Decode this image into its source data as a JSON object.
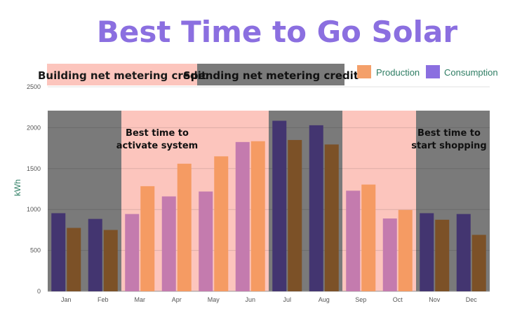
{
  "chart_data": {
    "type": "bar",
    "title": "Best Time to Go Solar",
    "xlabel": "",
    "ylabel": "kWh",
    "ylim": [
      0,
      2500
    ],
    "yticks": [
      0,
      500,
      1000,
      1500,
      2000,
      2500
    ],
    "grid": true,
    "legend_position": "top-right",
    "categories": [
      "Jan",
      "Feb",
      "Mar",
      "Apr",
      "May",
      "Jun",
      "Jul",
      "Aug",
      "Sep",
      "Oct",
      "Nov",
      "Dec"
    ],
    "series": [
      {
        "name": "Consumption",
        "values": [
          955,
          885,
          945,
          1160,
          1220,
          1825,
          2085,
          2030,
          1230,
          890,
          955,
          945
        ]
      },
      {
        "name": "Production",
        "values": [
          775,
          750,
          1285,
          1560,
          1650,
          1835,
          1850,
          1795,
          1305,
          995,
          875,
          690
        ]
      }
    ],
    "legend": [
      {
        "label": "Production",
        "color": "#F4A06A"
      },
      {
        "label": "Consumption",
        "color": "#8B6FE0"
      }
    ],
    "bands": [
      {
        "label": "",
        "from_index": 0,
        "to_index": 1,
        "phase": "spending"
      },
      {
        "label": "",
        "from_index": 2,
        "to_index": 5,
        "phase": "building"
      },
      {
        "label": "",
        "from_index": 6,
        "to_index": 7,
        "phase": "spending"
      },
      {
        "label": "",
        "from_index": 8,
        "to_index": 9,
        "phase": "building"
      },
      {
        "label": "",
        "from_index": 10,
        "to_index": 11,
        "phase": "spending"
      }
    ],
    "header_bands": [
      {
        "label": "Building net metering credit",
        "phase": "building"
      },
      {
        "label": "Spending net metering credit",
        "phase": "spending"
      }
    ],
    "annotations": [
      {
        "lines": [
          "Best time to",
          "activate system"
        ],
        "month": "Mar"
      },
      {
        "lines": [
          "Best time to",
          "start shopping"
        ],
        "month": "Nov"
      }
    ],
    "colors": {
      "title": "#8B6FE0",
      "building_band": "#FCC5BD",
      "spending_band": "#7A7A7A",
      "consumption_dark": "#433570",
      "production_dark": "#7C5127",
      "consumption_light": "#C47BAE",
      "production_light": "#F59B63",
      "legend_text": "#2E7D63",
      "axis_text": "#555555"
    }
  }
}
